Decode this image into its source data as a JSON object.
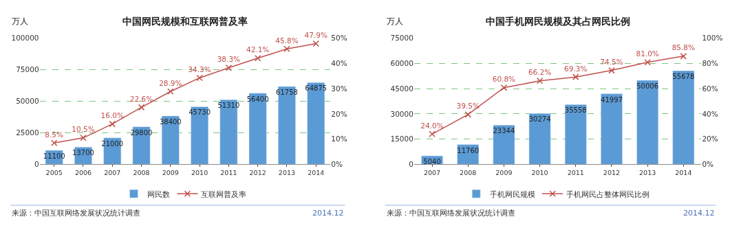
{
  "chart_data": [
    {
      "type": "bar",
      "title": "中国网民规模和互联网普及率",
      "ylabel": "万人",
      "categories": [
        "2005",
        "2006",
        "2007",
        "2008",
        "2009",
        "2010",
        "2011",
        "2012",
        "2013",
        "2014"
      ],
      "series": [
        {
          "name": "网民数",
          "color": "#5b9bd5",
          "values": [
            11100,
            13700,
            21000,
            29800,
            38400,
            45730,
            51310,
            56400,
            61758,
            64875
          ]
        },
        {
          "name": "互联网普及率",
          "type": "line",
          "axis": "y2",
          "color": "#c0504d",
          "values": [
            8.5,
            10.5,
            16.0,
            22.6,
            28.9,
            34.3,
            38.3,
            42.1,
            45.8,
            47.9
          ],
          "value_labels": [
            "8.5%",
            "10.5%",
            "16.0%",
            "22.6%",
            "28.9%",
            "34.3%",
            "38.3%",
            "42.1%",
            "45.8%",
            "47.9%"
          ]
        }
      ],
      "ylim": [
        0,
        100000
      ],
      "yticks": [
        0,
        25000,
        50000,
        75000,
        100000
      ],
      "y2lim": [
        0,
        50
      ],
      "y2ticks": [
        {
          "value": 0,
          "label": "0%"
        },
        {
          "value": 10,
          "label": "10%"
        },
        {
          "value": 20,
          "label": "20%"
        },
        {
          "value": 30,
          "label": "30%"
        },
        {
          "value": 40,
          "label": "40%"
        },
        {
          "value": 50,
          "label": "50%"
        }
      ],
      "data_labels": true,
      "grid": "y",
      "legend": "bottom",
      "marker": "cross",
      "annotations": [
        "来源：中国互联网络发展状况统计调查",
        "2014.12"
      ]
    },
    {
      "type": "bar",
      "title": "中国手机网民规模及其占网民比例",
      "ylabel": "万人",
      "categories": [
        "2007",
        "2008",
        "2009",
        "2010",
        "2011",
        "2012",
        "2013",
        "2014"
      ],
      "series": [
        {
          "name": "手机网民规模",
          "color": "#5b9bd5",
          "values": [
            5040,
            11760,
            23344,
            30274,
            35558,
            41997,
            50006,
            55678
          ]
        },
        {
          "name": "手机网民占整体网民比例",
          "type": "line",
          "axis": "y2",
          "color": "#c0504d",
          "values": [
            24.0,
            39.5,
            60.8,
            66.2,
            69.3,
            74.5,
            81.0,
            85.8
          ],
          "value_labels": [
            "24.0%",
            "39.5%",
            "60.8%",
            "66.2%",
            "69.3%",
            "74.5%",
            "81.0%",
            "85.8%"
          ]
        }
      ],
      "ylim": [
        0,
        75000
      ],
      "yticks": [
        0,
        15000,
        30000,
        45000,
        60000,
        75000
      ],
      "y2lim": [
        0,
        100
      ],
      "y2ticks": [
        {
          "value": 0,
          "label": "0%"
        },
        {
          "value": 20,
          "label": "20%"
        },
        {
          "value": 40,
          "label": "40%"
        },
        {
          "value": 60,
          "label": "60%"
        },
        {
          "value": 80,
          "label": "80%"
        },
        {
          "value": 100,
          "label": "100%"
        }
      ],
      "data_labels": true,
      "grid": "y",
      "legend": "bottom",
      "marker": "cross",
      "annotations": [
        "来源：中国互联网络发展状况统计调查",
        "2014.12"
      ]
    }
  ]
}
